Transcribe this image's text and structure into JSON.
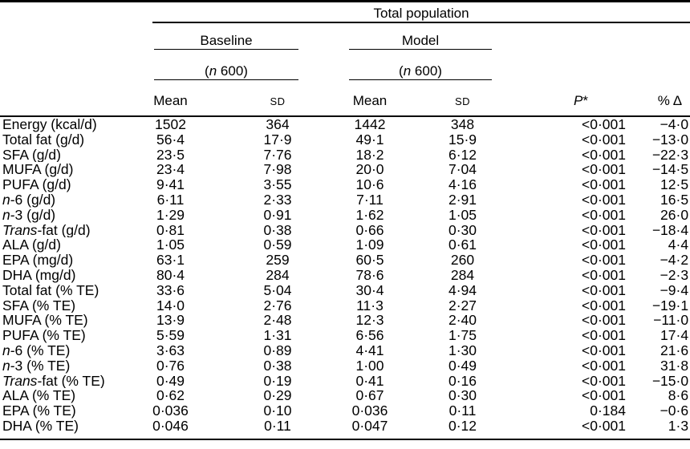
{
  "header": {
    "spanner": "Total population",
    "group_baseline": "Baseline",
    "group_model": "Model",
    "n_open": "(",
    "n_italic": "n",
    "n_rest": " 600)",
    "col_mean": "Mean",
    "col_sd": "SD",
    "col_p_italic": "P",
    "col_p_star": "*",
    "col_delta": "% Δ"
  },
  "rows": [
    {
      "li": "",
      "lr": "Energy (kcal/d)",
      "bm": "1502",
      "bs": "364",
      "mm": "1442",
      "ms": "348",
      "p": "<0·001",
      "d": "−4·0"
    },
    {
      "li": "",
      "lr": "Total fat (g/d)",
      "bm": "56·4",
      "bs": "17·9",
      "mm": "49·1",
      "ms": "15·9",
      "p": "<0·001",
      "d": "−13·0"
    },
    {
      "li": "",
      "lr": "SFA (g/d)",
      "bm": "23·5",
      "bs": "7·76",
      "mm": "18·2",
      "ms": "6·12",
      "p": "<0·001",
      "d": "−22·3"
    },
    {
      "li": "",
      "lr": "MUFA (g/d)",
      "bm": "23·4",
      "bs": "7·98",
      "mm": "20·0",
      "ms": "7·04",
      "p": "<0·001",
      "d": "−14·5"
    },
    {
      "li": "",
      "lr": "PUFA (g/d)",
      "bm": "9·41",
      "bs": "3·55",
      "mm": "10·6",
      "ms": "4·16",
      "p": "<0·001",
      "d": "12·5"
    },
    {
      "li": "n",
      "lr": "-6 (g/d)",
      "bm": "6·11",
      "bs": "2·33",
      "mm": "7·11",
      "ms": "2·91",
      "p": "<0·001",
      "d": "16·5"
    },
    {
      "li": "n",
      "lr": "-3 (g/d)",
      "bm": "1·29",
      "bs": "0·91",
      "mm": "1·62",
      "ms": "1·05",
      "p": "<0·001",
      "d": "26·0"
    },
    {
      "li": "Trans",
      "lr": "-fat (g/d)",
      "bm": "0·81",
      "bs": "0·38",
      "mm": "0·66",
      "ms": "0·30",
      "p": "<0·001",
      "d": "−18·4"
    },
    {
      "li": "",
      "lr": "ALA (g/d)",
      "bm": "1·05",
      "bs": "0·59",
      "mm": "1·09",
      "ms": "0·61",
      "p": "<0·001",
      "d": "4·4"
    },
    {
      "li": "",
      "lr": "EPA (mg/d)",
      "bm": "63·1",
      "bs": "259",
      "mm": "60·5",
      "ms": "260",
      "p": "<0·001",
      "d": "−4·2"
    },
    {
      "li": "",
      "lr": "DHA (mg/d)",
      "bm": "80·4",
      "bs": "284",
      "mm": "78·6",
      "ms": "284",
      "p": "<0·001",
      "d": "−2·3"
    },
    {
      "li": "",
      "lr": "Total fat (% TE)",
      "bm": "33·6",
      "bs": "5·04",
      "mm": "30·4",
      "ms": "4·94",
      "p": "<0·001",
      "d": "−9·4"
    },
    {
      "li": "",
      "lr": "SFA (% TE)",
      "bm": "14·0",
      "bs": "2·76",
      "mm": "11·3",
      "ms": "2·27",
      "p": "<0·001",
      "d": "−19·1"
    },
    {
      "li": "",
      "lr": "MUFA (% TE)",
      "bm": "13·9",
      "bs": "2·48",
      "mm": "12·3",
      "ms": "2·40",
      "p": "<0·001",
      "d": "−11·0"
    },
    {
      "li": "",
      "lr": "PUFA (% TE)",
      "bm": "5·59",
      "bs": "1·31",
      "mm": "6·56",
      "ms": "1·75",
      "p": "<0·001",
      "d": "17·4"
    },
    {
      "li": "n",
      "lr": "-6 (% TE)",
      "bm": "3·63",
      "bs": "0·89",
      "mm": "4·41",
      "ms": "1·30",
      "p": "<0·001",
      "d": "21·6"
    },
    {
      "li": "n",
      "lr": "-3 (% TE)",
      "bm": "0·76",
      "bs": "0·38",
      "mm": "1·00",
      "ms": "0·49",
      "p": "<0·001",
      "d": "31·8"
    },
    {
      "li": "Trans",
      "lr": "-fat (% TE)",
      "bm": "0·49",
      "bs": "0·19",
      "mm": "0·41",
      "ms": "0·16",
      "p": "<0·001",
      "d": "−15·0"
    },
    {
      "li": "",
      "lr": "ALA (% TE)",
      "bm": "0·62",
      "bs": "0·29",
      "mm": "0·67",
      "ms": "0·30",
      "p": "<0·001",
      "d": "8·6"
    },
    {
      "li": "",
      "lr": "EPA (% TE)",
      "bm": "0·036",
      "bs": "0·10",
      "mm": "0·036",
      "ms": "0·11",
      "p": "0·184",
      "d": "−0·6"
    },
    {
      "li": "",
      "lr": "DHA (% TE)",
      "bm": "0·046",
      "bs": "0·11",
      "mm": "0·047",
      "ms": "0·12",
      "p": "<0·001",
      "d": "1·3"
    }
  ]
}
